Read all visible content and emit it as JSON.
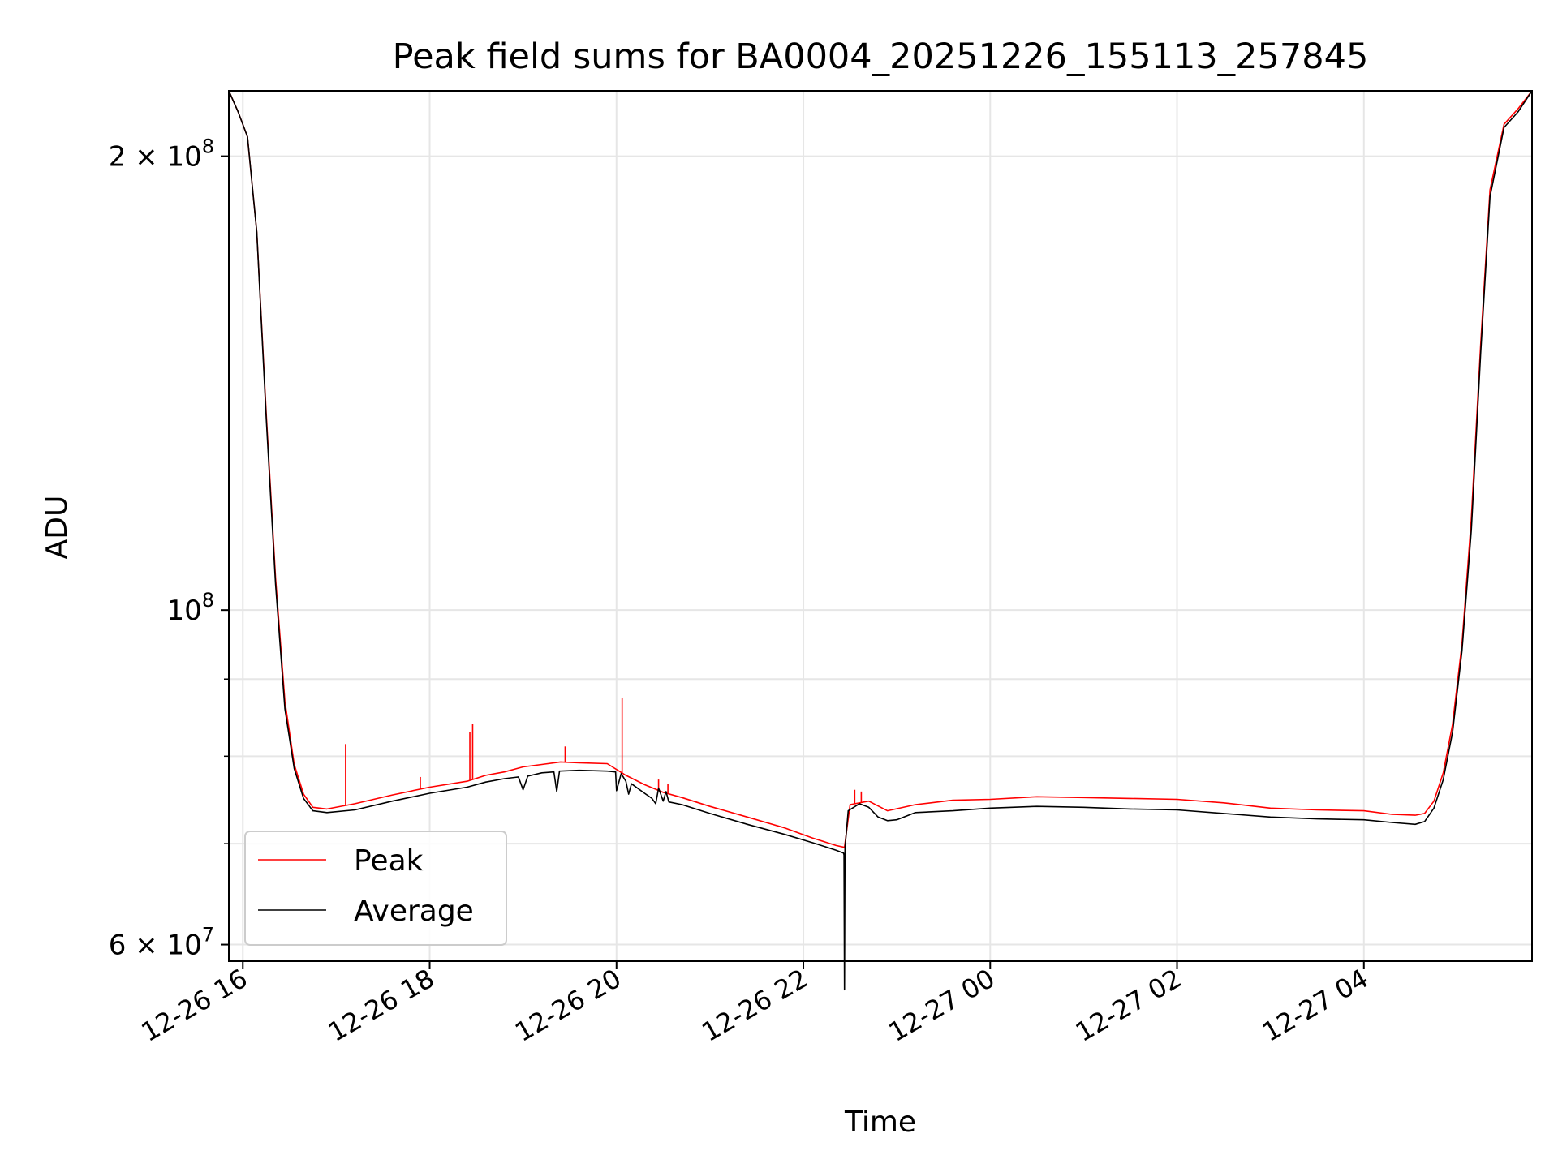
{
  "chart_data": {
    "type": "line",
    "title": "Peak field sums for BA0004_20251226_155113_257845",
    "xlabel": "Time",
    "ylabel": "ADU",
    "yscale": "log",
    "xlim_hours": [
      15.85,
      29.8
    ],
    "ylim": [
      58500000,
      221000000
    ],
    "grid": true,
    "legend_position": "lower-left",
    "x_ticks": [
      {
        "value": 16,
        "label": "12-26 16"
      },
      {
        "value": 18,
        "label": "12-26 18"
      },
      {
        "value": 20,
        "label": "12-26 20"
      },
      {
        "value": 22,
        "label": "12-26 22"
      },
      {
        "value": 24,
        "label": "12-27 00"
      },
      {
        "value": 26,
        "label": "12-27 02"
      },
      {
        "value": 28,
        "label": "12-27 04"
      }
    ],
    "y_major_ticks": [
      {
        "value": 60000000,
        "mantissa": "6",
        "sep": "×",
        "base": "10",
        "exp": "7"
      },
      {
        "value": 100000000,
        "mantissa": "",
        "sep": "",
        "base": "10",
        "exp": "8"
      },
      {
        "value": 200000000,
        "mantissa": "2",
        "sep": "×",
        "base": "10",
        "exp": "8"
      }
    ],
    "y_minor_grid": [
      70000000,
      80000000,
      90000000
    ],
    "series": [
      {
        "name": "Peak",
        "color": "#ff0000",
        "x": [
          15.85,
          15.95,
          16.05,
          16.15,
          16.25,
          16.35,
          16.45,
          16.55,
          16.65,
          16.75,
          16.9,
          17.2,
          17.6,
          18.0,
          18.4,
          18.6,
          18.8,
          19.0,
          19.2,
          19.4,
          19.6,
          19.9,
          20.1,
          20.3,
          20.5,
          20.7,
          21.0,
          21.4,
          21.8,
          22.1,
          22.35,
          22.44,
          22.5,
          22.7,
          22.9,
          23.2,
          23.6,
          24.0,
          24.5,
          25.0,
          25.5,
          26.0,
          26.5,
          27.0,
          27.5,
          28.0,
          28.3,
          28.55,
          28.65,
          28.75,
          28.85,
          28.95,
          29.05,
          29.15,
          29.25,
          29.35,
          29.5,
          29.65,
          29.8
        ],
        "y": [
          221000000,
          214000000,
          206000000,
          178000000,
          135000000,
          105000000,
          87000000,
          79000000,
          75500000,
          74000000,
          73800000,
          74400000,
          75400000,
          76300000,
          77000000,
          77700000,
          78100000,
          78700000,
          79000000,
          79300000,
          79200000,
          79100000,
          77700000,
          76600000,
          75700000,
          75100000,
          74100000,
          72900000,
          71700000,
          70600000,
          69800000,
          69600000,
          74300000,
          74700000,
          73600000,
          74300000,
          74800000,
          74900000,
          75200000,
          75100000,
          75000000,
          74900000,
          74500000,
          73900000,
          73700000,
          73600000,
          73200000,
          73100000,
          73300000,
          74700000,
          78000000,
          84000000,
          95000000,
          115000000,
          150000000,
          190000000,
          210000000,
          215000000,
          221000000
        ],
        "spikes": [
          {
            "x": 17.1,
            "y": 81500000
          },
          {
            "x": 17.9,
            "y": 77500000
          },
          {
            "x": 18.43,
            "y": 83000000
          },
          {
            "x": 18.46,
            "y": 84000000
          },
          {
            "x": 19.45,
            "y": 81200000
          },
          {
            "x": 20.06,
            "y": 87500000
          },
          {
            "x": 20.45,
            "y": 77200000
          },
          {
            "x": 20.55,
            "y": 76700000
          },
          {
            "x": 22.55,
            "y": 76000000
          },
          {
            "x": 22.62,
            "y": 75800000
          }
        ]
      },
      {
        "name": "Average",
        "color": "#000000",
        "x": [
          15.85,
          15.95,
          16.05,
          16.15,
          16.25,
          16.35,
          16.45,
          16.55,
          16.65,
          16.75,
          16.9,
          17.2,
          17.6,
          18.0,
          18.4,
          18.6,
          18.8,
          18.95,
          19.0,
          19.05,
          19.2,
          19.33,
          19.36,
          19.39,
          19.6,
          19.9,
          19.99,
          20.0,
          20.05,
          20.1,
          20.13,
          20.16,
          20.3,
          20.38,
          20.42,
          20.45,
          20.5,
          20.53,
          20.56,
          20.7,
          21.0,
          21.4,
          21.8,
          22.1,
          22.35,
          22.43,
          22.435,
          22.44,
          22.445,
          22.48,
          22.6,
          22.7,
          22.8,
          22.9,
          23.0,
          23.2,
          23.6,
          24.0,
          24.5,
          25.0,
          25.5,
          26.0,
          26.5,
          27.0,
          27.5,
          28.0,
          28.3,
          28.55,
          28.65,
          28.75,
          28.85,
          28.95,
          29.05,
          29.15,
          29.25,
          29.35,
          29.5,
          29.65,
          29.8
        ],
        "y": [
          221000000,
          214000000,
          206000000,
          178000000,
          134000000,
          104000000,
          86000000,
          78500000,
          75000000,
          73600000,
          73400000,
          73700000,
          74700000,
          75600000,
          76300000,
          76900000,
          77300000,
          77500000,
          76000000,
          77600000,
          78000000,
          78100000,
          75800000,
          78200000,
          78300000,
          78200000,
          78100000,
          75900000,
          77900000,
          77000000,
          75500000,
          76700000,
          75600000,
          75000000,
          74400000,
          76200000,
          74700000,
          75800000,
          74600000,
          74300000,
          73300000,
          72100000,
          71000000,
          70100000,
          69300000,
          69000000,
          68800000,
          56000000,
          69500000,
          73600000,
          74400000,
          74000000,
          72900000,
          72500000,
          72600000,
          73400000,
          73600000,
          73900000,
          74100000,
          74000000,
          73800000,
          73700000,
          73300000,
          72900000,
          72700000,
          72600000,
          72300000,
          72100000,
          72400000,
          73900000,
          77200000,
          83000000,
          94000000,
          113000000,
          148000000,
          188000000,
          209000000,
          214000000,
          221000000
        ]
      }
    ]
  }
}
